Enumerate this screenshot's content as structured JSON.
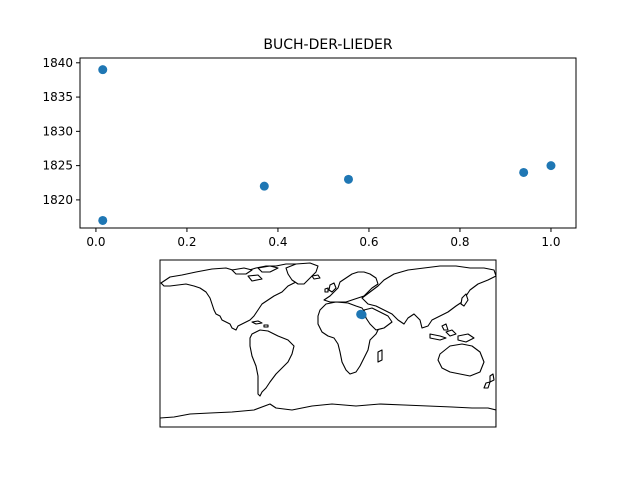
{
  "chart_data": [
    {
      "type": "scatter",
      "title": "BUCH-DER-LIEDER",
      "xlabel": "",
      "ylabel": "",
      "x": [
        0.015,
        0.015,
        0.37,
        0.555,
        0.94,
        1.0
      ],
      "y": [
        1839,
        1817,
        1822,
        1823,
        1824,
        1825
      ],
      "xlim": [
        -0.035,
        1.055
      ],
      "ylim": [
        1815.9,
        1840.7
      ],
      "xticks": [
        0.0,
        0.2,
        0.4,
        0.6,
        0.8,
        1.0
      ],
      "xtick_labels": [
        "0.0",
        "0.2",
        "0.4",
        "0.6",
        "0.8",
        "1.0"
      ],
      "yticks": [
        1820,
        1825,
        1830,
        1835,
        1840
      ],
      "ytick_labels": [
        "1820",
        "1825",
        "1830",
        "1835",
        "1840"
      ],
      "marker_color": "#1f77b4",
      "grid": false,
      "legend": "none"
    },
    {
      "type": "map",
      "projection": "plate-carree",
      "title": "",
      "lon_range": [
        -180,
        180
      ],
      "lat_range": [
        -90,
        90
      ],
      "points": [
        {
          "lon": 35.0,
          "lat": 31.5
        },
        {
          "lon": 36.5,
          "lat": 31.0
        }
      ],
      "marker_color": "#1f77b4",
      "land_fill": "#ffffff",
      "coastline_color": "#000000"
    }
  ]
}
